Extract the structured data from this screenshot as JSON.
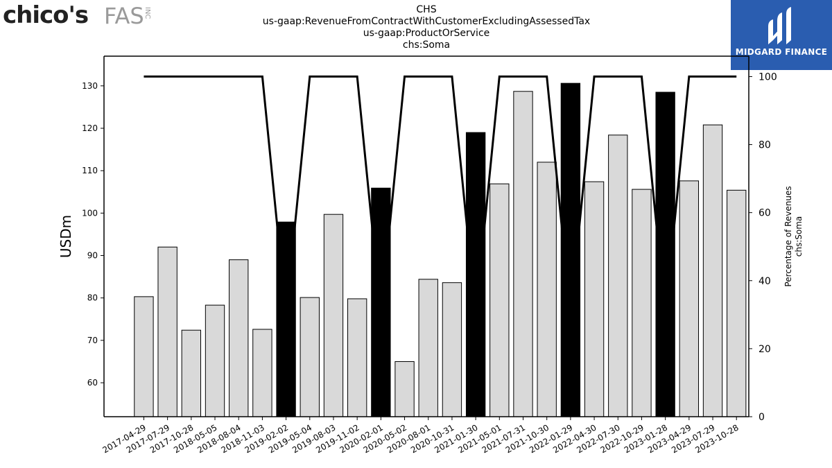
{
  "brand": {
    "main": "chico's",
    "sub": "FAS",
    "inc": "INC"
  },
  "logo": {
    "text": "MIDGARD FINANCE",
    "icon": "midgard-logo-icon",
    "bg": "#2a5db0"
  },
  "colors": {
    "bar_default": "#d9d9d9",
    "bar_highlight": "#000000",
    "line": "#000000"
  },
  "chart_data": {
    "type": "bar",
    "title_lines": [
      "CHS",
      "us-gaap:RevenueFromContractWithCustomerExcludingAssessedTax",
      "us-gaap:ProductOrService",
      "chs:Soma"
    ],
    "ylabel": "USDm",
    "y2label_lines": [
      "Percentage of Revenues",
      "chs:Soma"
    ],
    "ylim": [
      52,
      137
    ],
    "y2lim": [
      0,
      106
    ],
    "yticks": [
      60,
      70,
      80,
      90,
      100,
      110,
      120,
      130
    ],
    "y2ticks": [
      0,
      20,
      40,
      60,
      80,
      100
    ],
    "categories": [
      "2017-04-29",
      "2017-07-29",
      "2017-10-28",
      "2018-05-05",
      "2018-08-04",
      "2018-11-03",
      "2019-02-02",
      "2019-05-04",
      "2019-08-03",
      "2019-11-02",
      "2020-02-01",
      "2020-05-02",
      "2020-08-01",
      "2020-10-31",
      "2021-01-30",
      "2021-05-01",
      "2021-07-31",
      "2021-10-30",
      "2022-01-29",
      "2022-04-30",
      "2022-07-30",
      "2022-10-29",
      "2023-01-28",
      "2023-04-29",
      "2023-07-29",
      "2023-10-28"
    ],
    "values": [
      80.3,
      92.0,
      72.4,
      78.3,
      89.0,
      72.6,
      97.9,
      80.1,
      99.7,
      79.8,
      105.9,
      65.0,
      84.4,
      83.6,
      119.0,
      106.9,
      128.7,
      112.0,
      130.6,
      107.4,
      118.4,
      105.6,
      128.5,
      107.6,
      120.8,
      105.4
    ],
    "highlight": [
      false,
      false,
      false,
      false,
      false,
      false,
      true,
      false,
      false,
      false,
      true,
      false,
      false,
      false,
      true,
      false,
      false,
      false,
      true,
      false,
      false,
      false,
      true,
      false,
      false,
      false
    ],
    "series": [
      {
        "values": [
          100,
          100,
          100,
          100,
          100,
          100,
          30,
          100,
          100,
          100,
          30,
          100,
          100,
          100,
          30,
          100,
          100,
          100,
          30,
          100,
          100,
          100,
          30,
          100,
          100,
          100
        ]
      }
    ],
    "grid": false,
    "legend": "none"
  }
}
